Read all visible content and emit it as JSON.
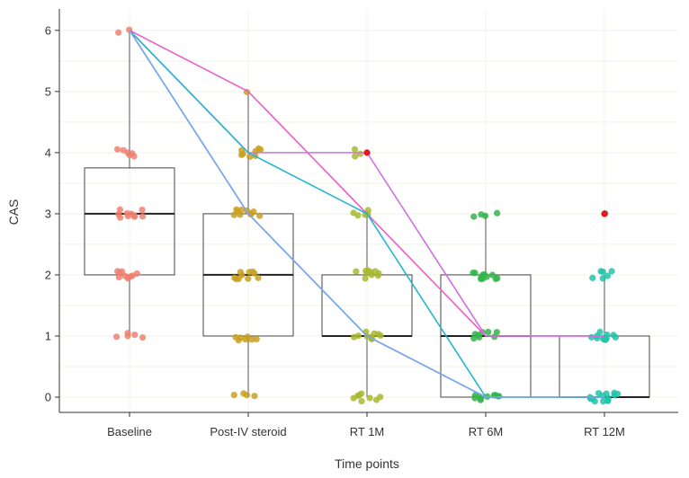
{
  "chart_data": {
    "type": "box",
    "title": "",
    "xlabel": "Time points",
    "ylabel": "CAS",
    "ylim": [
      -0.25,
      6.35
    ],
    "yticks": [
      "0",
      "1",
      "2",
      "3",
      "4",
      "5",
      "6"
    ],
    "categories": [
      "Baseline",
      "Post-IV steroid",
      "RT 1M",
      "RT 6M",
      "RT 12M"
    ],
    "group_colors": [
      "#f08070",
      "#c9a020",
      "#a8b830",
      "#33b54a",
      "#22c4aa"
    ],
    "boxes": [
      {
        "name": "Baseline",
        "q1": 2,
        "median": 3,
        "q3": 3.75,
        "whisker_low": 1,
        "whisker_high": 6
      },
      {
        "name": "Post-IV steroid",
        "q1": 1,
        "median": 2,
        "q3": 3,
        "whisker_low": 0,
        "whisker_high": 5
      },
      {
        "name": "RT 1M",
        "q1": 1,
        "median": 1,
        "q3": 2,
        "whisker_low": 0,
        "whisker_high": 3
      },
      {
        "name": "RT 6M",
        "q1": 0,
        "median": 1,
        "q3": 2,
        "whisker_low": 0,
        "whisker_high": 3
      },
      {
        "name": "RT 12M",
        "q1": 0,
        "median": 0,
        "q3": 1,
        "whisker_low": 0,
        "whisker_high": 2
      }
    ],
    "points": [
      {
        "x": 0,
        "y": 6,
        "n": 2
      },
      {
        "x": 0,
        "y": 4,
        "n": 6
      },
      {
        "x": 0,
        "y": 3,
        "n": 10
      },
      {
        "x": 0,
        "y": 2,
        "n": 10
      },
      {
        "x": 0,
        "y": 1,
        "n": 5
      },
      {
        "x": 1,
        "y": 5,
        "n": 1
      },
      {
        "x": 1,
        "y": 4,
        "n": 8
      },
      {
        "x": 1,
        "y": 3,
        "n": 10
      },
      {
        "x": 1,
        "y": 2,
        "n": 10
      },
      {
        "x": 1,
        "y": 1,
        "n": 7
      },
      {
        "x": 1,
        "y": 0,
        "n": 4
      },
      {
        "x": 2,
        "y": 4,
        "n": 3
      },
      {
        "x": 2,
        "y": 3,
        "n": 5
      },
      {
        "x": 2,
        "y": 2,
        "n": 10
      },
      {
        "x": 2,
        "y": 1,
        "n": 10
      },
      {
        "x": 2,
        "y": 0,
        "n": 8
      },
      {
        "x": 3,
        "y": 3,
        "n": 4
      },
      {
        "x": 3,
        "y": 2,
        "n": 12
      },
      {
        "x": 3,
        "y": 1,
        "n": 8
      },
      {
        "x": 3,
        "y": 0,
        "n": 10
      },
      {
        "x": 4,
        "y": 3,
        "n": 1
      },
      {
        "x": 4,
        "y": 2,
        "n": 6
      },
      {
        "x": 4,
        "y": 1,
        "n": 12
      },
      {
        "x": 4,
        "y": 0,
        "n": 14
      }
    ],
    "outliers": [
      {
        "x": 2,
        "y": 4,
        "color": "#e8141e"
      },
      {
        "x": 4,
        "y": 3,
        "color": "#e8141e"
      }
    ],
    "trajectories": [
      {
        "color": "#ef5bc8",
        "values": [
          6,
          5,
          3,
          1,
          1
        ]
      },
      {
        "color": "#d070e0",
        "values": [
          6,
          4,
          4,
          1,
          1
        ]
      },
      {
        "color": "#22b8cc",
        "values": [
          6,
          4,
          3,
          0,
          0
        ]
      },
      {
        "color": "#5a8fe6",
        "values": [
          6,
          3,
          1,
          0,
          0
        ]
      },
      {
        "color": "#7aa8e8",
        "values": [
          6,
          3,
          1,
          0,
          0
        ]
      }
    ]
  }
}
